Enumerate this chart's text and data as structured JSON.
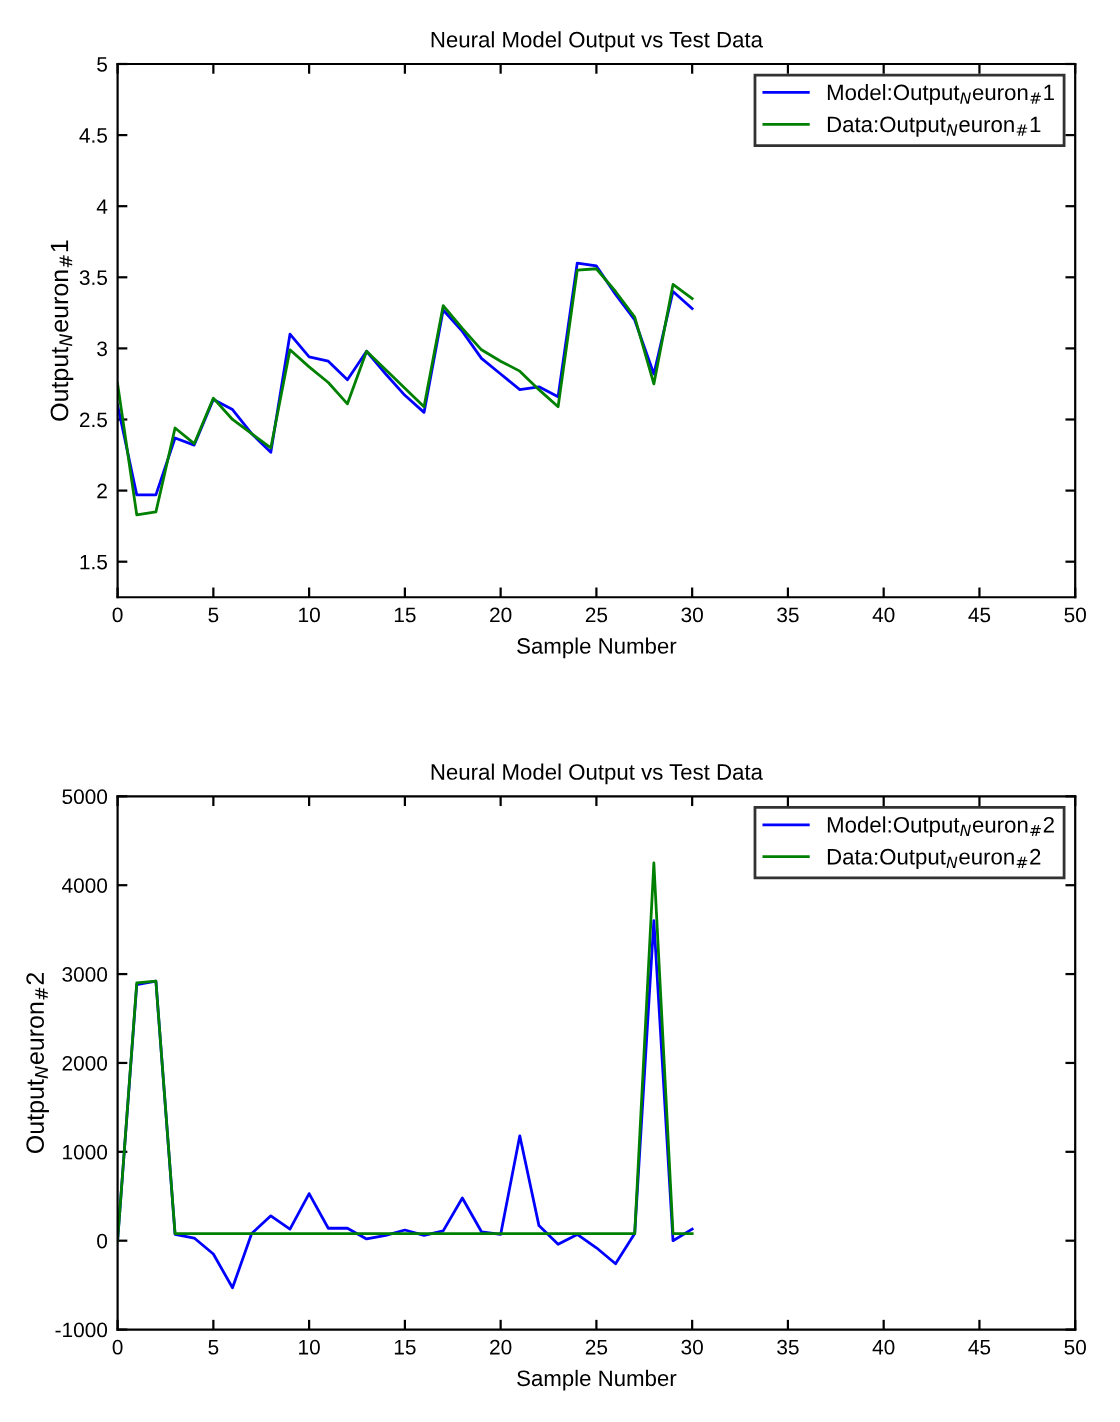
{
  "chart_data": [
    {
      "type": "line",
      "title": "Neural Model Output vs Test Data",
      "xlabel": "Sample Number",
      "ylabel": "Output$_{N}$euron$_{#}$1",
      "x": [
        0,
        1,
        2,
        3,
        4,
        5,
        6,
        7,
        8,
        9,
        10,
        11,
        12,
        13,
        14,
        15,
        16,
        17,
        18,
        19,
        20,
        21,
        22,
        23,
        24,
        25,
        26,
        27,
        28,
        29,
        30
      ],
      "series": [
        {
          "name": "Model:Output$_{N}$euron$_{#}$1",
          "color": "#0000ff",
          "values": [
            2.6,
            1.97,
            1.97,
            2.37,
            2.32,
            2.64,
            2.57,
            2.4,
            2.27,
            3.1,
            2.94,
            2.91,
            2.78,
            2.98,
            2.82,
            2.67,
            2.55,
            3.27,
            3.12,
            2.93,
            2.82,
            2.71,
            2.73,
            2.66,
            3.6,
            3.58,
            3.38,
            3.2,
            2.82,
            3.4,
            3.28
          ]
        },
        {
          "name": "Data:Output$_{N}$euron$_{#}$1",
          "color": "#008000",
          "values": [
            2.75,
            1.83,
            1.85,
            2.44,
            2.33,
            2.65,
            2.5,
            2.4,
            2.3,
            2.99,
            2.87,
            2.76,
            2.61,
            2.98,
            2.85,
            2.72,
            2.59,
            3.3,
            3.14,
            2.99,
            2.91,
            2.84,
            2.71,
            2.59,
            3.55,
            3.56,
            3.4,
            3.22,
            2.75,
            3.45,
            3.35
          ]
        }
      ],
      "xlim": [
        0,
        50
      ],
      "xticks": [
        0,
        5,
        10,
        15,
        20,
        25,
        30,
        35,
        40,
        45,
        50
      ],
      "ylim": [
        1.25,
        5
      ],
      "yticks": [
        1.5,
        2,
        2.5,
        3,
        3.5,
        4,
        4.5,
        5
      ],
      "legend": "top right",
      "grid": false
    },
    {
      "type": "line",
      "title": "Neural Model Output vs Test Data",
      "xlabel": "Sample Number",
      "ylabel": "Output$_{N}$euron$_{#}$2",
      "x": [
        0,
        1,
        2,
        3,
        4,
        5,
        6,
        7,
        8,
        9,
        10,
        11,
        12,
        13,
        14,
        15,
        16,
        17,
        18,
        19,
        20,
        21,
        22,
        23,
        24,
        25,
        26,
        27,
        28,
        29,
        30
      ],
      "series": [
        {
          "name": "Model:Output$_{N}$euron$_{#}$2",
          "color": "#0000ff",
          "values": [
            0,
            2880,
            2920,
            70,
            30,
            -150,
            -530,
            80,
            280,
            130,
            530,
            140,
            140,
            20,
            60,
            120,
            60,
            110,
            480,
            100,
            70,
            1180,
            170,
            -40,
            70,
            -80,
            -260,
            80,
            3600,
            0,
            130
          ]
        },
        {
          "name": "Data:Output$_{N}$euron$_{#}$2",
          "color": "#008000",
          "values": [
            0,
            2900,
            2920,
            80,
            80,
            80,
            80,
            80,
            80,
            80,
            80,
            80,
            80,
            80,
            80,
            80,
            80,
            80,
            80,
            80,
            80,
            80,
            80,
            80,
            80,
            80,
            80,
            80,
            4250,
            80,
            80
          ]
        }
      ],
      "xlim": [
        0,
        50
      ],
      "xticks": [
        0,
        5,
        10,
        15,
        20,
        25,
        30,
        35,
        40,
        45,
        50
      ],
      "ylim": [
        -1000,
        5000
      ],
      "yticks": [
        -1000,
        0,
        1000,
        2000,
        3000,
        4000,
        5000
      ],
      "legend": "top right",
      "grid": false
    }
  ]
}
